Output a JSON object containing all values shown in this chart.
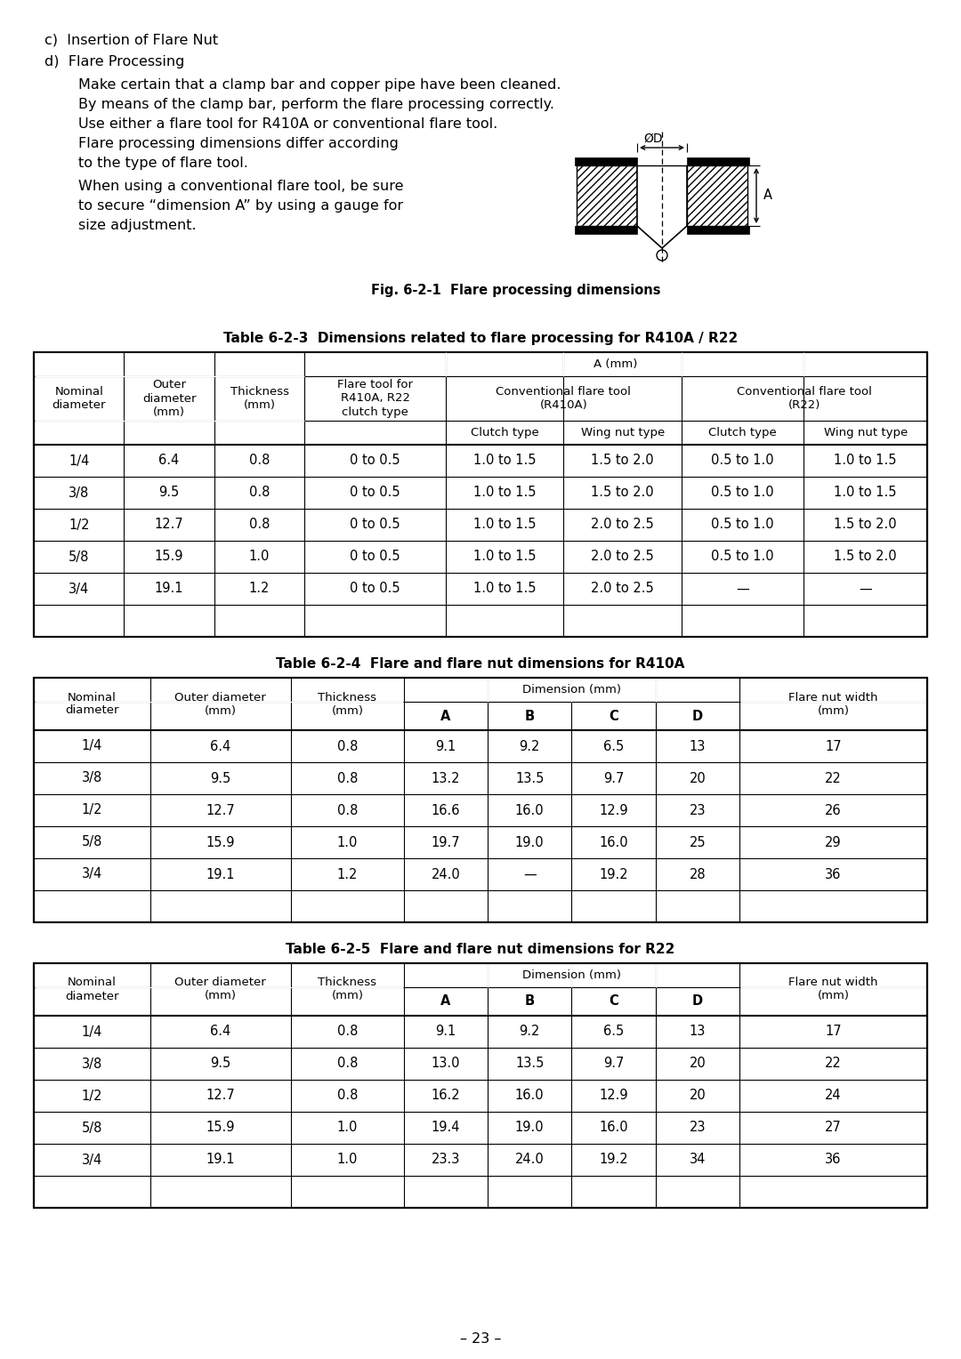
{
  "bg_color": "#ffffff",
  "text_color": "#000000",
  "page_width": 10.8,
  "page_height": 15.28,
  "table1_title": "Table 6-2-3  Dimensions related to flare processing for R410A / R22",
  "table1_rows": [
    [
      "1/4",
      "6.4",
      "0.8",
      "0 to 0.5",
      "1.0 to 1.5",
      "1.5 to 2.0",
      "0.5 to 1.0",
      "1.0 to 1.5"
    ],
    [
      "3/8",
      "9.5",
      "0.8",
      "0 to 0.5",
      "1.0 to 1.5",
      "1.5 to 2.0",
      "0.5 to 1.0",
      "1.0 to 1.5"
    ],
    [
      "1/2",
      "12.7",
      "0.8",
      "0 to 0.5",
      "1.0 to 1.5",
      "2.0 to 2.5",
      "0.5 to 1.0",
      "1.5 to 2.0"
    ],
    [
      "5/8",
      "15.9",
      "1.0",
      "0 to 0.5",
      "1.0 to 1.5",
      "2.0 to 2.5",
      "0.5 to 1.0",
      "1.5 to 2.0"
    ],
    [
      "3/4",
      "19.1",
      "1.2",
      "0 to 0.5",
      "1.0 to 1.5",
      "2.0 to 2.5",
      "—",
      "—"
    ]
  ],
  "table2_title": "Table 6-2-4  Flare and flare nut dimensions for R410A",
  "table2_rows": [
    [
      "1/4",
      "6.4",
      "0.8",
      "9.1",
      "9.2",
      "6.5",
      "13",
      "17"
    ],
    [
      "3/8",
      "9.5",
      "0.8",
      "13.2",
      "13.5",
      "9.7",
      "20",
      "22"
    ],
    [
      "1/2",
      "12.7",
      "0.8",
      "16.6",
      "16.0",
      "12.9",
      "23",
      "26"
    ],
    [
      "5/8",
      "15.9",
      "1.0",
      "19.7",
      "19.0",
      "16.0",
      "25",
      "29"
    ],
    [
      "3/4",
      "19.1",
      "1.2",
      "24.0",
      "—",
      "19.2",
      "28",
      "36"
    ]
  ],
  "table3_title": "Table 6-2-5  Flare and flare nut dimensions for R22",
  "table3_rows": [
    [
      "1/4",
      "6.4",
      "0.8",
      "9.1",
      "9.2",
      "6.5",
      "13",
      "17"
    ],
    [
      "3/8",
      "9.5",
      "0.8",
      "13.0",
      "13.5",
      "9.7",
      "20",
      "22"
    ],
    [
      "1/2",
      "12.7",
      "0.8",
      "16.2",
      "16.0",
      "12.9",
      "20",
      "24"
    ],
    [
      "5/8",
      "15.9",
      "1.0",
      "19.4",
      "19.0",
      "16.0",
      "23",
      "27"
    ],
    [
      "3/4",
      "19.1",
      "1.0",
      "23.3",
      "24.0",
      "19.2",
      "34",
      "36"
    ]
  ],
  "footer": "– 23 –"
}
